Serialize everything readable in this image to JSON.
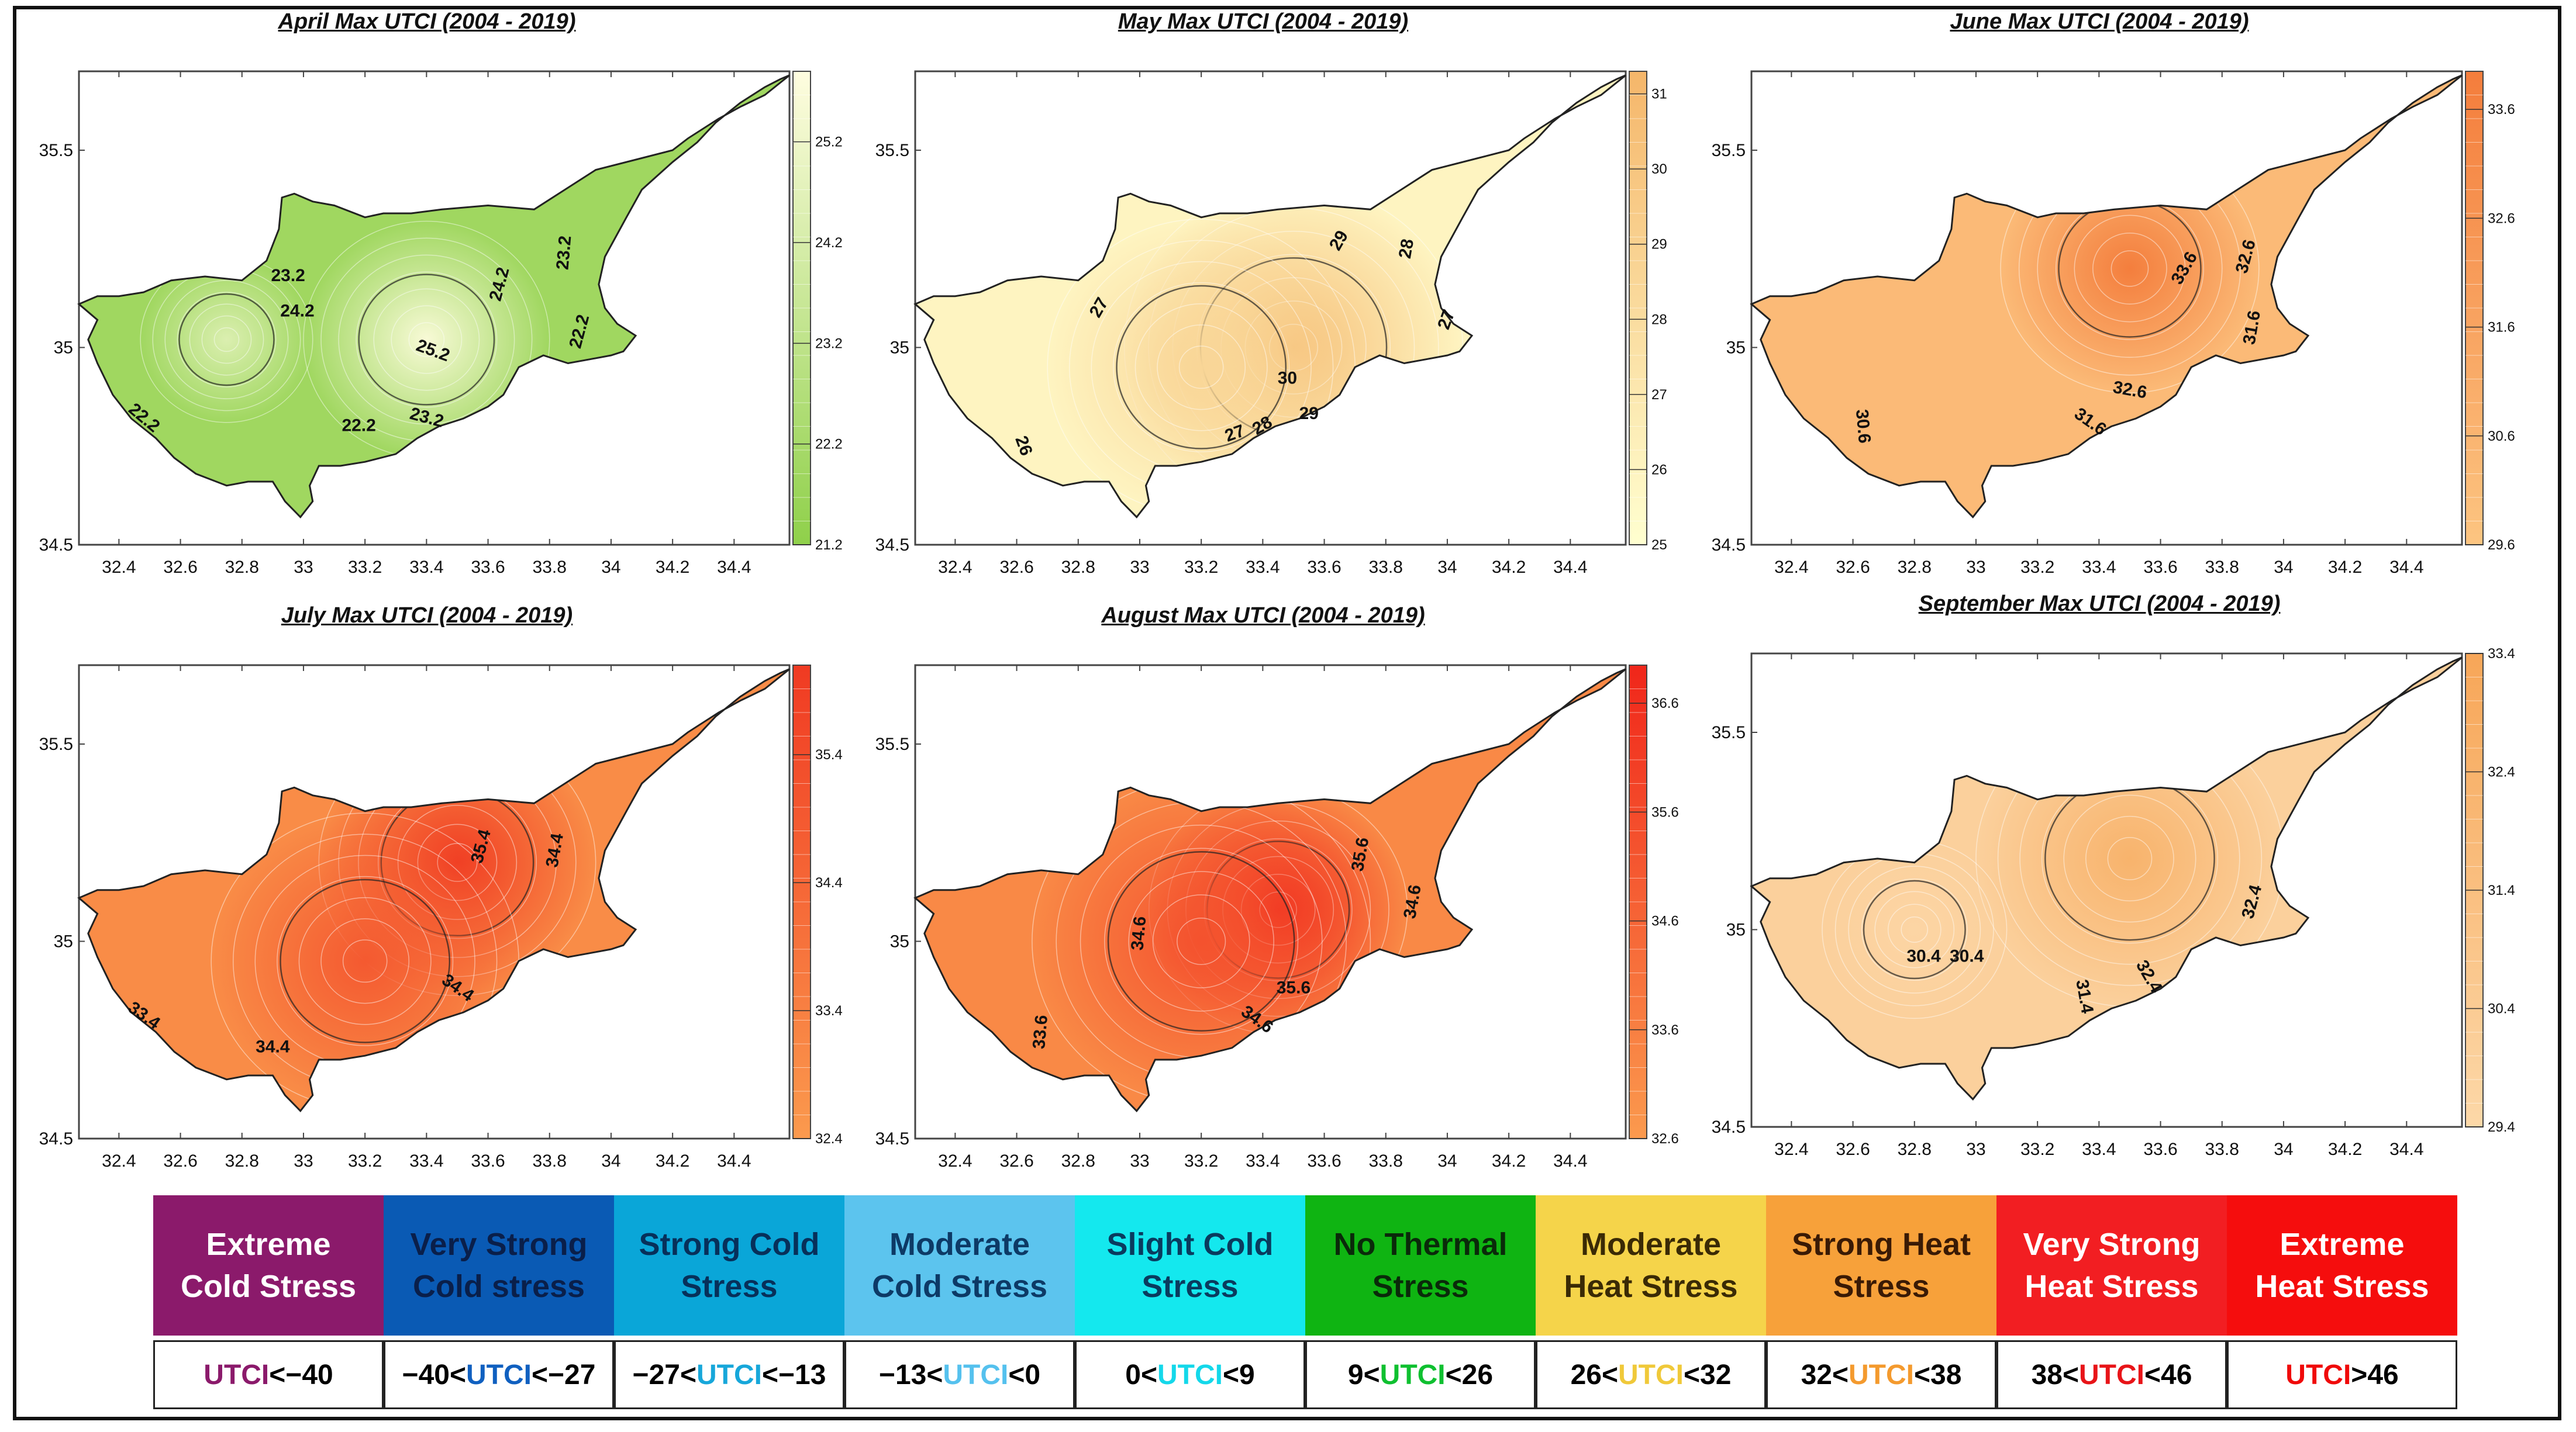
{
  "legend": {
    "categories": [
      {
        "label": "Extreme\nCold Stress",
        "color": "#8b1a6b",
        "text_color": "#ffffff",
        "pre": "",
        "key": "UTCI",
        "post": "<−40",
        "key_color": "#8b1a6b"
      },
      {
        "label": "Very Strong\nCold stress",
        "color": "#0a5ab4",
        "text_color": "#0a1f4a",
        "pre": "−40<",
        "key": "UTCI",
        "post": "<−27",
        "key_color": "#1060c0"
      },
      {
        "label": "Strong Cold\nStress",
        "color": "#0aa6d8",
        "text_color": "#07305a",
        "pre": "−27<",
        "key": "UTCI",
        "post": "<−13",
        "key_color": "#17a7da"
      },
      {
        "label": "Moderate\nCold Stress",
        "color": "#5cc4ee",
        "text_color": "#0d3a66",
        "pre": "−13<",
        "key": "UTCI",
        "post": "<0",
        "key_color": "#55c1ee"
      },
      {
        "label": "Slight Cold\nStress",
        "color": "#14e8ee",
        "text_color": "#0a3b5e",
        "pre": "0<",
        "key": "UTCI",
        "post": "<9",
        "key_color": "#14d8ea"
      },
      {
        "label": "No Thermal\nStress",
        "color": "#0fb412",
        "text_color": "#0a2a0a",
        "pre": "9<",
        "key": "UTCI",
        "post": "<26",
        "key_color": "#0fc030"
      },
      {
        "label": "Moderate\nHeat Stress",
        "color": "#f5d44a",
        "text_color": "#3a2a05",
        "pre": "26<",
        "key": "UTCI",
        "post": "<32",
        "key_color": "#f0c93a"
      },
      {
        "label": "Strong Heat\nStress",
        "color": "#f7a13a",
        "text_color": "#3a1a05",
        "pre": "32<",
        "key": "UTCI",
        "post": "<38",
        "key_color": "#f49a2e"
      },
      {
        "label": "Very Strong\nHeat Stress",
        "color": "#f21e22",
        "text_color": "#ffffff",
        "pre": "38<",
        "key": "UTCI",
        "post": "<46",
        "key_color": "#e81418"
      },
      {
        "label": "Extreme\nHeat Stress",
        "color": "#f50d0d",
        "text_color": "#ffffff",
        "pre": "",
        "key": "UTCI",
        "post": ">46",
        "key_color": "#f00a0a"
      }
    ]
  },
  "chart_data": [
    {
      "type": "heatmap",
      "title": "April Max UTCI (2004 - 2019)",
      "xlim": [
        32.27,
        34.58
      ],
      "ylim": [
        34.5,
        35.7
      ],
      "x_ticks": [
        "32.4",
        "32.6",
        "32.8",
        "33",
        "33.2",
        "33.4",
        "33.6",
        "33.8",
        "34",
        "34.2",
        "34.4"
      ],
      "y_ticks": [
        "35.5",
        "35",
        "34.5"
      ],
      "colorbar": {
        "min": 21.2,
        "max": 25.9,
        "ticks": [
          "25.2",
          "24.2",
          "23.2",
          "22.2",
          "21.2"
        ],
        "low_color": "#8fd04a",
        "high_color": "#fffde0"
      },
      "hotspots": [
        {
          "lon": 33.4,
          "lat": 35.02,
          "value": 25.6,
          "spread": 0.4
        },
        {
          "lon": 32.75,
          "lat": 35.02,
          "value": 24.4,
          "spread": 0.28
        }
      ],
      "contour_labels": [
        {
          "text": "23.2",
          "lon": 32.95,
          "lat": 35.18,
          "angle": 0
        },
        {
          "text": "24.2",
          "lon": 32.98,
          "lat": 35.09,
          "angle": 0
        },
        {
          "text": "25.2",
          "lon": 33.42,
          "lat": 34.99,
          "angle": 20
        },
        {
          "text": "24.2",
          "lon": 33.64,
          "lat": 35.16,
          "angle": -75
        },
        {
          "text": "23.2",
          "lon": 33.85,
          "lat": 35.24,
          "angle": -85
        },
        {
          "text": "22.2",
          "lon": 33.9,
          "lat": 35.04,
          "angle": -75
        },
        {
          "text": "22.2",
          "lon": 32.48,
          "lat": 34.82,
          "angle": 40
        },
        {
          "text": "22.2",
          "lon": 33.18,
          "lat": 34.8,
          "angle": 0
        },
        {
          "text": "23.2",
          "lon": 33.4,
          "lat": 34.82,
          "angle": 15
        }
      ]
    },
    {
      "type": "heatmap",
      "title": "May Max UTCI (2004 - 2019)",
      "xlim": [
        32.27,
        34.58
      ],
      "ylim": [
        34.5,
        35.7
      ],
      "x_ticks": [
        "32.4",
        "32.6",
        "32.8",
        "33",
        "33.2",
        "33.4",
        "33.6",
        "33.8",
        "34",
        "34.2",
        "34.4"
      ],
      "y_ticks": [
        "35.5",
        "35",
        "34.5"
      ],
      "colorbar": {
        "min": 25,
        "max": 31.3,
        "ticks": [
          "31",
          "30",
          "29",
          "28",
          "27",
          "26",
          "25"
        ],
        "low_color": "#ffffd0",
        "high_color": "#f5b66a"
      },
      "hotspots": [
        {
          "lon": 33.5,
          "lat": 35.0,
          "value": 30.4,
          "spread": 0.55
        },
        {
          "lon": 33.2,
          "lat": 34.95,
          "value": 28.5,
          "spread": 0.5
        }
      ],
      "contour_labels": [
        {
          "text": "27",
          "lon": 32.87,
          "lat": 35.1,
          "angle": -60
        },
        {
          "text": "29",
          "lon": 33.65,
          "lat": 35.27,
          "angle": -60
        },
        {
          "text": "28",
          "lon": 33.87,
          "lat": 35.25,
          "angle": -80
        },
        {
          "text": "27",
          "lon": 34.0,
          "lat": 35.07,
          "angle": -70
        },
        {
          "text": "30",
          "lon": 33.48,
          "lat": 34.92,
          "angle": 0
        },
        {
          "text": "26",
          "lon": 32.62,
          "lat": 34.75,
          "angle": 70
        },
        {
          "text": "27",
          "lon": 33.31,
          "lat": 34.78,
          "angle": -20
        },
        {
          "text": "28",
          "lon": 33.4,
          "lat": 34.8,
          "angle": -30
        },
        {
          "text": "29",
          "lon": 33.55,
          "lat": 34.83,
          "angle": 0
        }
      ]
    },
    {
      "type": "heatmap",
      "title": "June Max UTCI (2004 - 2019)",
      "xlim": [
        32.27,
        34.58
      ],
      "ylim": [
        34.5,
        35.7
      ],
      "x_ticks": [
        "32.4",
        "32.6",
        "32.8",
        "33",
        "33.2",
        "33.4",
        "33.6",
        "33.8",
        "34",
        "34.2",
        "34.4"
      ],
      "y_ticks": [
        "35.5",
        "35",
        "34.5"
      ],
      "colorbar": {
        "min": 29.6,
        "max": 33.95,
        "ticks": [
          "33.6",
          "32.6",
          "31.6",
          "30.6",
          "29.6"
        ],
        "low_color": "#fcc581",
        "high_color": "#f47d3c"
      },
      "hotspots": [
        {
          "lon": 33.5,
          "lat": 35.2,
          "value": 33.9,
          "spread": 0.42
        }
      ],
      "contour_labels": [
        {
          "text": "33.6",
          "lon": 33.68,
          "lat": 35.2,
          "angle": -60
        },
        {
          "text": "32.6",
          "lon": 33.88,
          "lat": 35.23,
          "angle": -75
        },
        {
          "text": "31.6",
          "lon": 33.9,
          "lat": 35.05,
          "angle": -80
        },
        {
          "text": "32.6",
          "lon": 33.5,
          "lat": 34.89,
          "angle": 10
        },
        {
          "text": "31.6",
          "lon": 33.37,
          "lat": 34.81,
          "angle": 35
        },
        {
          "text": "30.6",
          "lon": 32.63,
          "lat": 34.8,
          "angle": 85
        }
      ]
    },
    {
      "type": "heatmap",
      "title": "July Max UTCI (2004 - 2019)",
      "xlim": [
        32.27,
        34.58
      ],
      "ylim": [
        34.5,
        35.7
      ],
      "x_ticks": [
        "32.4",
        "32.6",
        "32.8",
        "33",
        "33.2",
        "33.4",
        "33.6",
        "33.8",
        "34",
        "34.2",
        "34.4"
      ],
      "y_ticks": [
        "35.5",
        "35",
        "34.5"
      ],
      "colorbar": {
        "min": 32.4,
        "max": 36.1,
        "ticks": [
          "35.4",
          "34.4",
          "33.4",
          "32.4"
        ],
        "low_color": "#fb9a4e",
        "high_color": "#f03a22"
      },
      "hotspots": [
        {
          "lon": 33.5,
          "lat": 35.2,
          "value": 36.0,
          "spread": 0.45
        },
        {
          "lon": 33.2,
          "lat": 34.95,
          "value": 34.9,
          "spread": 0.5
        }
      ],
      "contour_labels": [
        {
          "text": "35.4",
          "lon": 33.58,
          "lat": 35.24,
          "angle": -75
        },
        {
          "text": "34.4",
          "lon": 33.82,
          "lat": 35.23,
          "angle": -80
        },
        {
          "text": "34.4",
          "lon": 33.5,
          "lat": 34.88,
          "angle": 35
        },
        {
          "text": "33.4",
          "lon": 32.48,
          "lat": 34.81,
          "angle": 35
        },
        {
          "text": "34.4",
          "lon": 32.9,
          "lat": 34.73,
          "angle": 0
        }
      ]
    },
    {
      "type": "heatmap",
      "title": "August Max UTCI (2004 - 2019)",
      "xlim": [
        32.27,
        34.58
      ],
      "ylim": [
        34.5,
        35.7
      ],
      "x_ticks": [
        "32.4",
        "32.6",
        "32.8",
        "33",
        "33.2",
        "33.4",
        "33.6",
        "33.8",
        "34",
        "34.2",
        "34.4"
      ],
      "y_ticks": [
        "35.5",
        "35",
        "34.5"
      ],
      "colorbar": {
        "min": 32.6,
        "max": 36.95,
        "ticks": [
          "36.6",
          "35.6",
          "34.6",
          "33.6",
          "32.6"
        ],
        "low_color": "#fb9a4e",
        "high_color": "#f0261a"
      },
      "hotspots": [
        {
          "lon": 33.45,
          "lat": 35.08,
          "value": 36.9,
          "spread": 0.42
        },
        {
          "lon": 33.2,
          "lat": 35.0,
          "value": 35.3,
          "spread": 0.55
        }
      ],
      "contour_labels": [
        {
          "text": "35.6",
          "lon": 33.72,
          "lat": 35.22,
          "angle": -80
        },
        {
          "text": "34.6",
          "lon": 33.89,
          "lat": 35.1,
          "angle": -80
        },
        {
          "text": "34.6",
          "lon": 33.0,
          "lat": 35.02,
          "angle": -85
        },
        {
          "text": "35.6",
          "lon": 33.5,
          "lat": 34.88,
          "angle": 0
        },
        {
          "text": "34.6",
          "lon": 33.38,
          "lat": 34.8,
          "angle": 35
        },
        {
          "text": "33.6",
          "lon": 32.68,
          "lat": 34.77,
          "angle": -85
        }
      ]
    },
    {
      "type": "heatmap",
      "title": "September Max UTCI (2004 - 2019)",
      "xlim": [
        32.27,
        34.58
      ],
      "ylim": [
        34.5,
        35.7
      ],
      "x_ticks": [
        "32.4",
        "32.6",
        "32.8",
        "33",
        "33.2",
        "33.4",
        "33.6",
        "33.8",
        "34",
        "34.2",
        "34.4"
      ],
      "y_ticks": [
        "35.5",
        "35",
        "34.5"
      ],
      "colorbar": {
        "min": 29.4,
        "max": 33.4,
        "ticks": [
          "33.4",
          "32.4",
          "31.4",
          "30.4",
          "29.4"
        ],
        "low_color": "#fcd8a8",
        "high_color": "#f7a658"
      },
      "hotspots": [
        {
          "lon": 33.5,
          "lat": 35.18,
          "value": 32.4,
          "spread": 0.5
        },
        {
          "lon": 32.8,
          "lat": 35.0,
          "value": 29.6,
          "spread": 0.3
        }
      ],
      "contour_labels": [
        {
          "text": "30.4",
          "lon": 32.83,
          "lat": 34.93,
          "angle": 0
        },
        {
          "text": "30.4",
          "lon": 32.97,
          "lat": 34.93,
          "angle": 0
        },
        {
          "text": "31.4",
          "lon": 33.35,
          "lat": 34.83,
          "angle": 80
        },
        {
          "text": "32.4",
          "lon": 33.56,
          "lat": 34.88,
          "angle": 60
        },
        {
          "text": "32.4",
          "lon": 33.9,
          "lat": 35.07,
          "angle": -75
        }
      ]
    }
  ]
}
